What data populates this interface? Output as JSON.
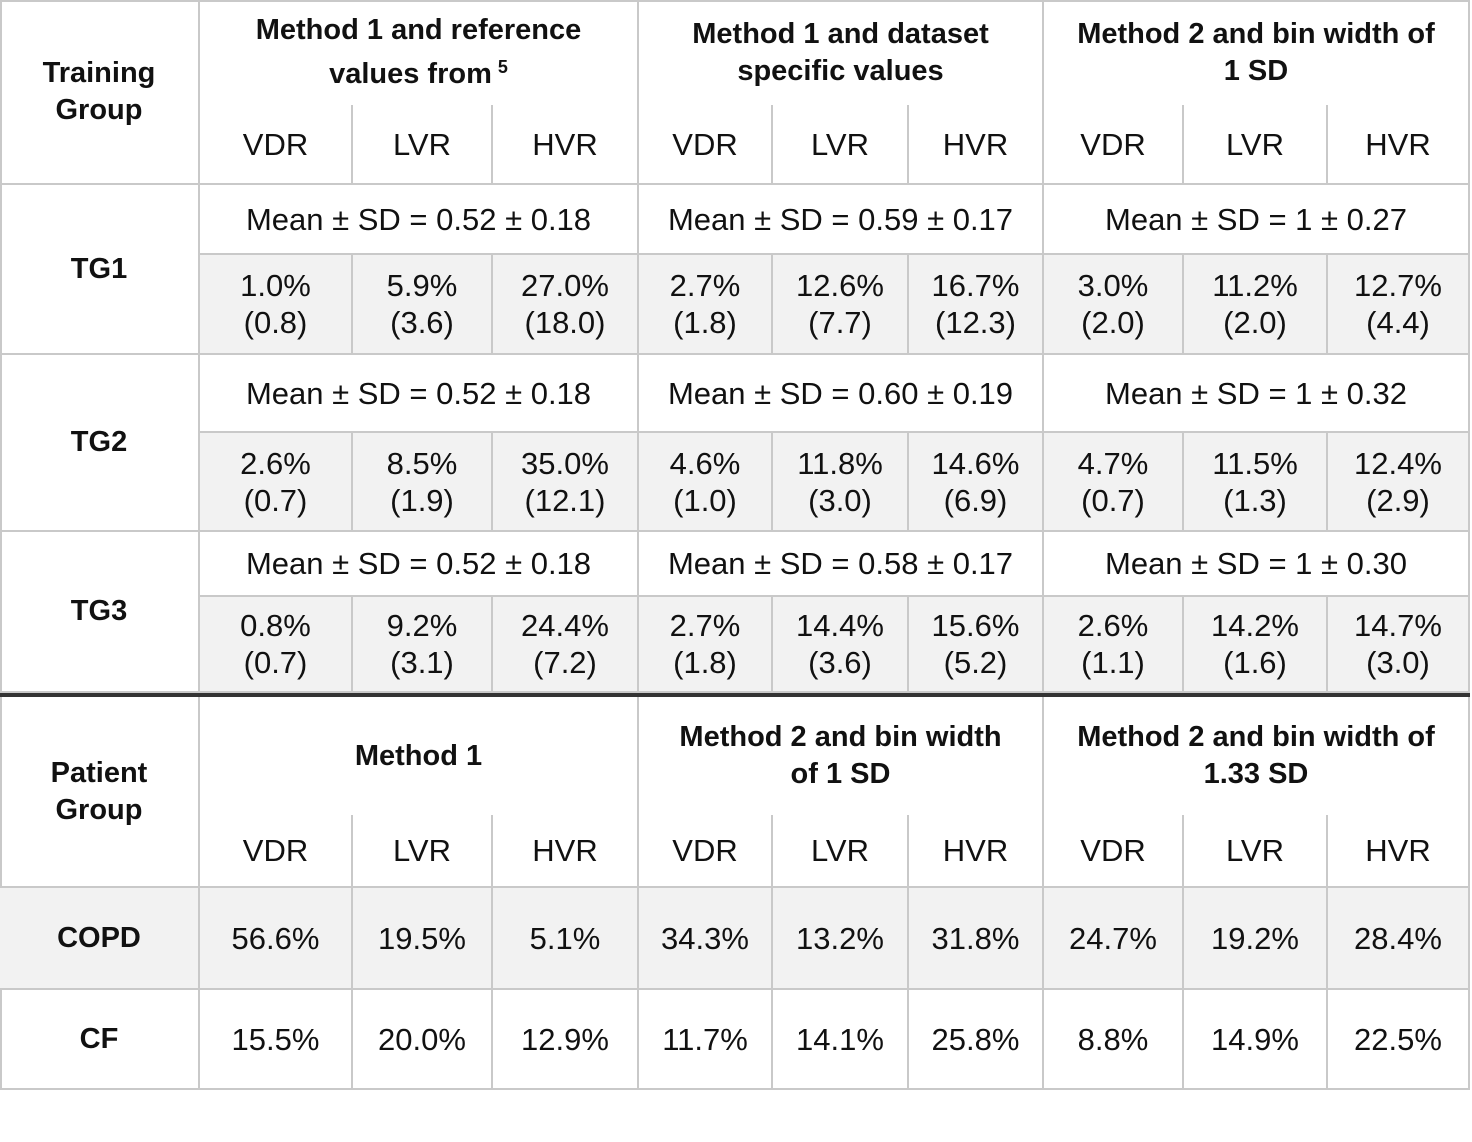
{
  "training_table": {
    "corner": "Training Group",
    "groups": [
      {
        "title": "Method 1 and reference values from",
        "superscript": "5",
        "columns": [
          "VDR",
          "LVR",
          "HVR"
        ]
      },
      {
        "title": "Method 1 and dataset specific values",
        "columns": [
          "VDR",
          "LVR",
          "HVR"
        ]
      },
      {
        "title": "Method 2 and bin width of 1 SD",
        "columns": [
          "VDR",
          "LVR",
          "HVR"
        ]
      }
    ],
    "rows": [
      {
        "label": "TG1",
        "summaries": [
          "Mean ± SD = 0.52 ± 0.18",
          "Mean ± SD = 0.59 ± 0.17",
          "Mean ± SD = 1 ± 0.27"
        ],
        "cells": [
          [
            "1.0%",
            "(0.8)"
          ],
          [
            "5.9%",
            "(3.6)"
          ],
          [
            "27.0%",
            "(18.0)"
          ],
          [
            "2.7%",
            "(1.8)"
          ],
          [
            "12.6%",
            "(7.7)"
          ],
          [
            "16.7%",
            "(12.3)"
          ],
          [
            "3.0%",
            "(2.0)"
          ],
          [
            "11.2%",
            "(2.0)"
          ],
          [
            "12.7%",
            "(4.4)"
          ]
        ]
      },
      {
        "label": "TG2",
        "summaries": [
          "Mean ± SD = 0.52 ± 0.18",
          "Mean ± SD = 0.60 ± 0.19",
          "Mean ± SD = 1 ± 0.32"
        ],
        "cells": [
          [
            "2.6%",
            "(0.7)"
          ],
          [
            "8.5%",
            "(1.9)"
          ],
          [
            "35.0%",
            "(12.1)"
          ],
          [
            "4.6%",
            "(1.0)"
          ],
          [
            "11.8%",
            "(3.0)"
          ],
          [
            "14.6%",
            "(6.9)"
          ],
          [
            "4.7%",
            "(0.7)"
          ],
          [
            "11.5%",
            "(1.3)"
          ],
          [
            "12.4%",
            "(2.9)"
          ]
        ]
      },
      {
        "label": "TG3",
        "summaries": [
          "Mean ± SD = 0.52 ± 0.18",
          "Mean ± SD = 0.58 ± 0.17",
          "Mean ± SD = 1 ± 0.30"
        ],
        "cells": [
          [
            "0.8%",
            "(0.7)"
          ],
          [
            "9.2%",
            "(3.1)"
          ],
          [
            "24.4%",
            "(7.2)"
          ],
          [
            "2.7%",
            "(1.8)"
          ],
          [
            "14.4%",
            "(3.6)"
          ],
          [
            "15.6%",
            "(5.2)"
          ],
          [
            "2.6%",
            "(1.1)"
          ],
          [
            "14.2%",
            "(1.6)"
          ],
          [
            "14.7%",
            "(3.0)"
          ]
        ]
      }
    ]
  },
  "patient_table": {
    "corner": "Patient Group",
    "groups": [
      {
        "title": "Method 1",
        "columns": [
          "VDR",
          "LVR",
          "HVR"
        ]
      },
      {
        "title": "Method 2 and bin width of 1 SD",
        "columns": [
          "VDR",
          "LVR",
          "HVR"
        ]
      },
      {
        "title": "Method 2 and bin width of 1.33 SD",
        "columns": [
          "VDR",
          "LVR",
          "HVR"
        ]
      }
    ],
    "rows": [
      {
        "label": "COPD",
        "cells": [
          "56.6%",
          "19.5%",
          "5.1%",
          "34.3%",
          "13.2%",
          "31.8%",
          "24.7%",
          "19.2%",
          "28.4%"
        ]
      },
      {
        "label": "CF",
        "cells": [
          "15.5%",
          "20.0%",
          "12.9%",
          "11.7%",
          "14.1%",
          "25.8%",
          "8.8%",
          "14.9%",
          "22.5%"
        ]
      }
    ]
  }
}
